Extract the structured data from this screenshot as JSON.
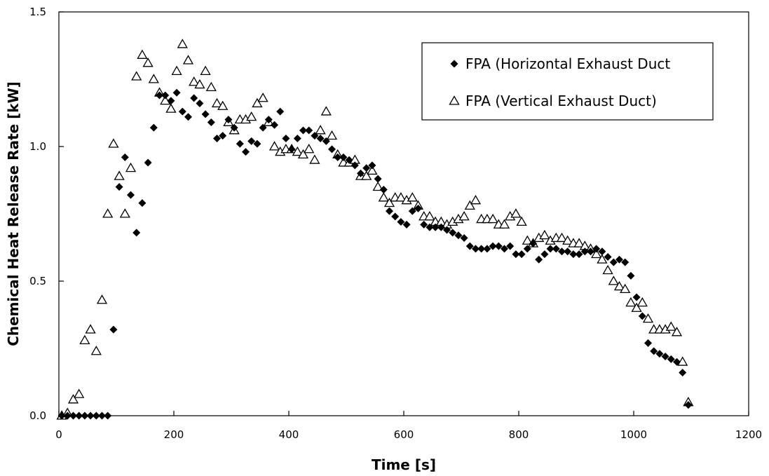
{
  "chart_data": {
    "type": "scatter",
    "title": "",
    "xlabel": "Time [s]",
    "ylabel": "Chemical Heat Release Rate [kW]",
    "xlim": [
      0,
      1200
    ],
    "ylim": [
      0,
      1.5
    ],
    "xticks": [
      "0",
      "200",
      "400",
      "600",
      "800",
      "1000",
      "1200"
    ],
    "yticks": [
      "0.0",
      "0.5",
      "1.0",
      "1.5"
    ],
    "grid": false,
    "legend_position": "top-right",
    "series": [
      {
        "name": "FPA (Horizontal Exhaust Duct",
        "marker": "filled-diamond",
        "color": "#000000",
        "points": [
          [
            5,
            0.0
          ],
          [
            15,
            0.0
          ],
          [
            25,
            0.0
          ],
          [
            35,
            0.0
          ],
          [
            45,
            0.0
          ],
          [
            55,
            0.0
          ],
          [
            65,
            0.0
          ],
          [
            75,
            0.0
          ],
          [
            85,
            0.0
          ],
          [
            95,
            0.32
          ],
          [
            105,
            0.85
          ],
          [
            115,
            0.96
          ],
          [
            125,
            0.82
          ],
          [
            135,
            0.68
          ],
          [
            145,
            0.79
          ],
          [
            155,
            0.94
          ],
          [
            165,
            1.07
          ],
          [
            175,
            1.19
          ],
          [
            185,
            1.19
          ],
          [
            195,
            1.17
          ],
          [
            205,
            1.2
          ],
          [
            215,
            1.13
          ],
          [
            225,
            1.11
          ],
          [
            235,
            1.18
          ],
          [
            245,
            1.16
          ],
          [
            255,
            1.12
          ],
          [
            265,
            1.09
          ],
          [
            275,
            1.03
          ],
          [
            285,
            1.04
          ],
          [
            295,
            1.1
          ],
          [
            305,
            1.07
          ],
          [
            315,
            1.01
          ],
          [
            325,
            0.98
          ],
          [
            335,
            1.02
          ],
          [
            345,
            1.01
          ],
          [
            355,
            1.07
          ],
          [
            365,
            1.1
          ],
          [
            375,
            1.08
          ],
          [
            385,
            1.13
          ],
          [
            395,
            1.03
          ],
          [
            405,
            0.99
          ],
          [
            415,
            1.03
          ],
          [
            425,
            1.06
          ],
          [
            435,
            1.06
          ],
          [
            445,
            1.04
          ],
          [
            455,
            1.03
          ],
          [
            465,
            1.02
          ],
          [
            475,
            0.99
          ],
          [
            485,
            0.96
          ],
          [
            495,
            0.96
          ],
          [
            505,
            0.95
          ],
          [
            515,
            0.93
          ],
          [
            525,
            0.9
          ],
          [
            535,
            0.92
          ],
          [
            545,
            0.93
          ],
          [
            555,
            0.88
          ],
          [
            565,
            0.84
          ],
          [
            575,
            0.76
          ],
          [
            585,
            0.74
          ],
          [
            595,
            0.72
          ],
          [
            605,
            0.71
          ],
          [
            615,
            0.76
          ],
          [
            625,
            0.77
          ],
          [
            635,
            0.71
          ],
          [
            645,
            0.7
          ],
          [
            655,
            0.7
          ],
          [
            665,
            0.7
          ],
          [
            675,
            0.69
          ],
          [
            685,
            0.68
          ],
          [
            695,
            0.67
          ],
          [
            705,
            0.66
          ],
          [
            715,
            0.63
          ],
          [
            725,
            0.62
          ],
          [
            735,
            0.62
          ],
          [
            745,
            0.62
          ],
          [
            755,
            0.63
          ],
          [
            765,
            0.63
          ],
          [
            775,
            0.62
          ],
          [
            785,
            0.63
          ],
          [
            795,
            0.6
          ],
          [
            805,
            0.6
          ],
          [
            815,
            0.62
          ],
          [
            825,
            0.64
          ],
          [
            835,
            0.58
          ],
          [
            845,
            0.6
          ],
          [
            855,
            0.62
          ],
          [
            865,
            0.62
          ],
          [
            875,
            0.61
          ],
          [
            885,
            0.61
          ],
          [
            895,
            0.6
          ],
          [
            905,
            0.6
          ],
          [
            915,
            0.61
          ],
          [
            925,
            0.61
          ],
          [
            935,
            0.62
          ],
          [
            945,
            0.61
          ],
          [
            955,
            0.59
          ],
          [
            965,
            0.57
          ],
          [
            975,
            0.58
          ],
          [
            985,
            0.57
          ],
          [
            995,
            0.52
          ],
          [
            1005,
            0.44
          ],
          [
            1015,
            0.37
          ],
          [
            1025,
            0.27
          ],
          [
            1035,
            0.24
          ],
          [
            1045,
            0.23
          ],
          [
            1055,
            0.22
          ],
          [
            1065,
            0.21
          ],
          [
            1075,
            0.2
          ],
          [
            1085,
            0.16
          ],
          [
            1095,
            0.04
          ]
        ]
      },
      {
        "name": "FPA (Vertical Exhaust Duct)",
        "marker": "open-triangle",
        "color": "#000000",
        "points": [
          [
            5,
            0.0
          ],
          [
            15,
            0.01
          ],
          [
            25,
            0.06
          ],
          [
            35,
            0.08
          ],
          [
            45,
            0.28
          ],
          [
            55,
            0.32
          ],
          [
            65,
            0.24
          ],
          [
            75,
            0.43
          ],
          [
            85,
            0.75
          ],
          [
            95,
            1.01
          ],
          [
            105,
            0.89
          ],
          [
            115,
            0.75
          ],
          [
            125,
            0.92
          ],
          [
            135,
            1.26
          ],
          [
            145,
            1.34
          ],
          [
            155,
            1.31
          ],
          [
            165,
            1.25
          ],
          [
            175,
            1.2
          ],
          [
            185,
            1.17
          ],
          [
            195,
            1.14
          ],
          [
            205,
            1.28
          ],
          [
            215,
            1.38
          ],
          [
            225,
            1.32
          ],
          [
            235,
            1.24
          ],
          [
            245,
            1.23
          ],
          [
            255,
            1.28
          ],
          [
            265,
            1.22
          ],
          [
            275,
            1.16
          ],
          [
            285,
            1.15
          ],
          [
            295,
            1.09
          ],
          [
            305,
            1.06
          ],
          [
            315,
            1.1
          ],
          [
            325,
            1.1
          ],
          [
            335,
            1.11
          ],
          [
            345,
            1.16
          ],
          [
            355,
            1.18
          ],
          [
            365,
            1.09
          ],
          [
            375,
            1.0
          ],
          [
            385,
            0.98
          ],
          [
            395,
            0.99
          ],
          [
            405,
            0.99
          ],
          [
            415,
            0.98
          ],
          [
            425,
            0.97
          ],
          [
            435,
            0.99
          ],
          [
            445,
            0.95
          ],
          [
            455,
            1.06
          ],
          [
            465,
            1.13
          ],
          [
            475,
            1.04
          ],
          [
            485,
            0.97
          ],
          [
            495,
            0.94
          ],
          [
            505,
            0.94
          ],
          [
            515,
            0.95
          ],
          [
            525,
            0.89
          ],
          [
            535,
            0.89
          ],
          [
            545,
            0.91
          ],
          [
            555,
            0.85
          ],
          [
            565,
            0.81
          ],
          [
            575,
            0.79
          ],
          [
            585,
            0.81
          ],
          [
            595,
            0.81
          ],
          [
            605,
            0.8
          ],
          [
            615,
            0.81
          ],
          [
            625,
            0.78
          ],
          [
            635,
            0.74
          ],
          [
            645,
            0.74
          ],
          [
            655,
            0.72
          ],
          [
            665,
            0.72
          ],
          [
            675,
            0.71
          ],
          [
            685,
            0.72
          ],
          [
            695,
            0.73
          ],
          [
            705,
            0.74
          ],
          [
            715,
            0.78
          ],
          [
            725,
            0.8
          ],
          [
            735,
            0.73
          ],
          [
            745,
            0.73
          ],
          [
            755,
            0.73
          ],
          [
            765,
            0.71
          ],
          [
            775,
            0.71
          ],
          [
            785,
            0.74
          ],
          [
            795,
            0.75
          ],
          [
            805,
            0.72
          ],
          [
            815,
            0.65
          ],
          [
            825,
            0.64
          ],
          [
            835,
            0.66
          ],
          [
            845,
            0.67
          ],
          [
            855,
            0.65
          ],
          [
            865,
            0.66
          ],
          [
            875,
            0.66
          ],
          [
            885,
            0.65
          ],
          [
            895,
            0.64
          ],
          [
            905,
            0.64
          ],
          [
            915,
            0.63
          ],
          [
            925,
            0.62
          ],
          [
            935,
            0.6
          ],
          [
            945,
            0.58
          ],
          [
            955,
            0.54
          ],
          [
            965,
            0.5
          ],
          [
            975,
            0.48
          ],
          [
            985,
            0.47
          ],
          [
            995,
            0.42
          ],
          [
            1005,
            0.4
          ],
          [
            1015,
            0.42
          ],
          [
            1025,
            0.36
          ],
          [
            1035,
            0.32
          ],
          [
            1045,
            0.32
          ],
          [
            1055,
            0.32
          ],
          [
            1065,
            0.33
          ],
          [
            1075,
            0.31
          ],
          [
            1085,
            0.2
          ],
          [
            1095,
            0.05
          ]
        ]
      }
    ]
  }
}
